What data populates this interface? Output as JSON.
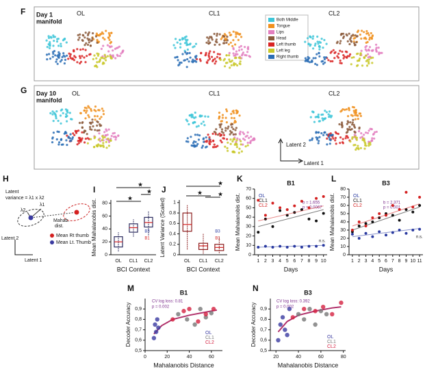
{
  "figure": {
    "F": {
      "letter": "F",
      "title": [
        "Day 1",
        "manifold"
      ],
      "contexts": [
        "OL",
        "CL1",
        "CL2"
      ],
      "legend": [
        {
          "name": "Both Middle",
          "color": "#3ec6d8"
        },
        {
          "name": "Tongue",
          "color": "#f0901e"
        },
        {
          "name": "Lips",
          "color": "#e37fbf"
        },
        {
          "name": "Head",
          "color": "#8b5a3c"
        },
        {
          "name": "Left thumb",
          "color": "#d92424"
        },
        {
          "name": "Left leg",
          "color": "#c9c82a"
        },
        {
          "name": "Right thumb",
          "color": "#2a6db5"
        }
      ]
    },
    "G": {
      "letter": "G",
      "title": [
        "Day 10",
        "manifold"
      ],
      "contexts": [
        "OL",
        "CL1",
        "CL2"
      ],
      "axes": [
        "Latent 2",
        "Latent 1"
      ]
    },
    "H": {
      "letter": "H",
      "variance": [
        "Latent",
        "variance = λ1 x λ2"
      ],
      "lambda2": "λ2",
      "lambda1": "λ1",
      "dist": [
        "Mahab.",
        "dist."
      ],
      "legend": [
        "Mean Rt thumb",
        "Mean Lt. Thumb"
      ],
      "axes": [
        "Latent 2",
        "Latent 1"
      ]
    }
  },
  "chart_data": [
    {
      "type": "box",
      "letter": "I",
      "ylabel": "Mean Mahalanobis dist.",
      "xlabel": "BCI Context",
      "color": "#2b2b5e",
      "categories": [
        "OL",
        "CL1",
        "CL2"
      ],
      "ylim": [
        0,
        85
      ],
      "yticks": [
        0,
        20,
        40,
        60,
        80
      ],
      "boxes": [
        {
          "min": 5,
          "q1": 12,
          "median": 20,
          "q3": 28,
          "max": 35
        },
        {
          "min": 28,
          "q1": 35,
          "median": 42,
          "q3": 48,
          "max": 55
        },
        {
          "min": 30,
          "q1": 43,
          "median": 50,
          "q3": 58,
          "max": 68
        }
      ],
      "annotations": [
        "★",
        "★",
        "★",
        "B3",
        "B1"
      ]
    },
    {
      "type": "box",
      "letter": "J",
      "ylabel": "Latent Variance (Scaled)",
      "xlabel": "BCI Context",
      "color": "#8b1c1c",
      "categories": [
        "OL",
        "CL1",
        "CL2"
      ],
      "ylim": [
        0,
        1.05
      ],
      "yticks": [
        0,
        0.2,
        0.4,
        0.6,
        0.8,
        1
      ],
      "boxes": [
        {
          "min": 0.1,
          "q1": 0.45,
          "median": 0.58,
          "q3": 0.8,
          "max": 0.95
        },
        {
          "min": 0.02,
          "q1": 0.1,
          "median": 0.17,
          "q3": 0.22,
          "max": 0.4
        },
        {
          "min": 0.03,
          "q1": 0.08,
          "median": 0.14,
          "q3": 0.2,
          "max": 0.35
        }
      ],
      "annotations": [
        "★",
        "★",
        "★",
        "B3",
        "B1"
      ]
    },
    {
      "type": "scatter",
      "letter": "K",
      "title": "B1",
      "xlabel": "Days",
      "ylabel": "Mean Mahalanobis dist.",
      "x": [
        1,
        2,
        3,
        4,
        5,
        6,
        7,
        8,
        9,
        10
      ],
      "xlim": [
        0.5,
        10.5
      ],
      "xticks": [
        1,
        2,
        3,
        4,
        5,
        6,
        7,
        8,
        9,
        10
      ],
      "ylim": [
        0,
        70
      ],
      "yticks": [
        0,
        10,
        20,
        30,
        40,
        50,
        60,
        70
      ],
      "series": [
        {
          "name": "OL",
          "color": "#2a3aa0",
          "values": [
            8,
            9,
            8,
            9,
            8,
            9,
            8,
            9,
            9,
            10
          ],
          "trend": [
            8,
            10
          ]
        },
        {
          "name": "CL1",
          "color": "#111111",
          "values": [
            24,
            38,
            30,
            47,
            42,
            45,
            48,
            38,
            36,
            44
          ],
          "trend": [
            30,
            48
          ]
        },
        {
          "name": "CL2",
          "color": "#d42020",
          "values": [
            58,
            42,
            55,
            50,
            48,
            52,
            57,
            50,
            60,
            62
          ],
          "trend": [
            36,
            52
          ]
        }
      ],
      "annotations": [
        "b = 1.655",
        "p = 0.0067",
        "n.s."
      ]
    },
    {
      "type": "scatter",
      "letter": "L",
      "title": "B3",
      "xlabel": "Days",
      "ylabel": "Mean Mahalanobis dist.",
      "x": [
        1,
        2,
        3,
        4,
        5,
        6,
        7,
        8,
        9,
        10,
        11
      ],
      "xlim": [
        0.5,
        11.5
      ],
      "xticks": [
        1,
        2,
        3,
        4,
        5,
        6,
        7,
        8,
        9,
        10,
        11
      ],
      "ylim": [
        0,
        80
      ],
      "yticks": [
        0,
        10,
        20,
        30,
        40,
        50,
        60,
        70,
        80
      ],
      "series": [
        {
          "name": "OL",
          "color": "#2a3aa0",
          "values": [
            25,
            20,
            26,
            22,
            28,
            24,
            27,
            30,
            26,
            30,
            31
          ],
          "trend": [
            22,
            32
          ]
        },
        {
          "name": "CL1",
          "color": "#111111",
          "values": [
            28,
            35,
            38,
            40,
            45,
            50,
            48,
            42,
            55,
            52,
            60
          ],
          "trend": [
            30,
            58
          ]
        },
        {
          "name": "CL2",
          "color": "#d42020",
          "values": [
            30,
            40,
            35,
            45,
            50,
            48,
            60,
            55,
            76,
            58,
            70
          ],
          "trend": [
            35,
            62
          ]
        }
      ],
      "annotations": [
        "b = 2.371",
        "p = 0.001",
        "n.s."
      ]
    },
    {
      "type": "scatter",
      "letter": "M",
      "title": "B1",
      "xlabel": "Mahalanobis Distance",
      "ylabel": "Decoder Accuracy",
      "xlim": [
        0,
        70
      ],
      "xticks": [
        0,
        20,
        40,
        60
      ],
      "ylim": [
        0.5,
        1.0
      ],
      "yticks": [
        {
          "value": 0.5,
          "label": "0,5"
        },
        {
          "value": 0.6,
          "label": "0,6"
        },
        {
          "value": 0.7,
          "label": "0,7"
        },
        {
          "value": 0.8,
          "label": "0,8"
        },
        {
          "value": 0.9,
          "label": "0,9"
        }
      ],
      "series": [
        {
          "name": "OL",
          "color": "#3a3aa0",
          "x": [
            8,
            9,
            10,
            11,
            12
          ],
          "values": [
            0.62,
            0.75,
            0.68,
            0.8,
            0.72
          ]
        },
        {
          "name": "CL1",
          "color": "#777777",
          "x": [
            30,
            38,
            45,
            50,
            55,
            60
          ],
          "values": [
            0.85,
            0.8,
            0.75,
            0.9,
            0.82,
            0.86
          ]
        },
        {
          "name": "CL2",
          "color": "#d42040",
          "x": [
            25,
            35,
            40,
            48,
            55,
            62
          ],
          "values": [
            0.8,
            0.88,
            0.9,
            0.78,
            0.85,
            0.9
          ]
        }
      ],
      "fit": {
        "color": "#b0306a",
        "x": [
          8,
          15,
          25,
          40,
          55,
          65
        ],
        "y": [
          0.66,
          0.74,
          0.8,
          0.84,
          0.87,
          0.89
        ]
      },
      "annotations": [
        "CV log loss: 0.81",
        "p = 0.002"
      ]
    },
    {
      "type": "scatter",
      "letter": "N",
      "title": "B3",
      "xlabel": "Mahalanobis Distance",
      "ylabel": "Decoder Accuracy",
      "xlim": [
        15,
        82
      ],
      "xticks": [
        20,
        40,
        60,
        80
      ],
      "ylim": [
        0.5,
        1.0
      ],
      "yticks": [
        {
          "value": 0.5,
          "label": "0,5"
        },
        {
          "value": 0.6,
          "label": "0,6"
        },
        {
          "value": 0.7,
          "label": "0,7"
        },
        {
          "value": 0.8,
          "label": "0,8"
        },
        {
          "value": 0.9,
          "label": "0,9"
        }
      ],
      "series": [
        {
          "name": "OL",
          "color": "#3a3aa0",
          "x": [
            22,
            24,
            26,
            28,
            30,
            32
          ],
          "values": [
            0.6,
            0.75,
            0.82,
            0.7,
            0.65,
            0.9
          ]
        },
        {
          "name": "CL1",
          "color": "#777777",
          "x": [
            40,
            45,
            50,
            55,
            60,
            65
          ],
          "values": [
            0.85,
            0.8,
            0.9,
            0.75,
            0.88,
            0.85
          ]
        },
        {
          "name": "CL2",
          "color": "#d42040",
          "x": [
            35,
            45,
            55,
            62,
            70,
            78
          ],
          "values": [
            0.82,
            0.9,
            0.88,
            0.92,
            0.85,
            0.96
          ]
        }
      ],
      "fit": {
        "color": "#b0306a",
        "x": [
          22,
          30,
          40,
          55,
          70,
          78
        ],
        "y": [
          0.68,
          0.78,
          0.84,
          0.88,
          0.91,
          0.92
        ]
      },
      "annotations": [
        "CV log loss: 0.392",
        "p = 0.002"
      ]
    }
  ]
}
